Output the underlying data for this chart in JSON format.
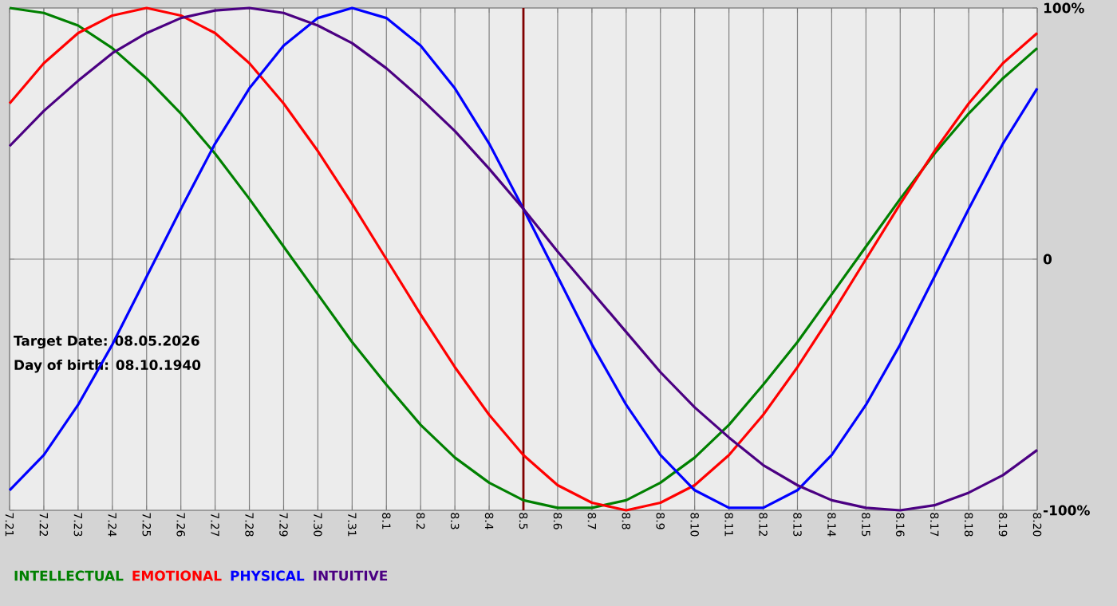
{
  "chart_data": {
    "type": "line",
    "categories": [
      "7.21",
      "7.22",
      "7.23",
      "7.24",
      "7.25",
      "7.26",
      "7.27",
      "7.28",
      "7.29",
      "7.30",
      "7.31",
      "8.1",
      "8.2",
      "8.3",
      "8.4",
      "8.5",
      "8.6",
      "8.7",
      "8.8",
      "8.9",
      "8.10",
      "8.11",
      "8.12",
      "8.13",
      "8.14",
      "8.15",
      "8.16",
      "8.17",
      "8.18",
      "8.19",
      "8.20"
    ],
    "series": [
      {
        "name": "INTELLECTUAL",
        "color": "#008000",
        "values": [
          100,
          98,
          93,
          84,
          72,
          58,
          42,
          24,
          5,
          -14,
          -33,
          -50,
          -66,
          -79,
          -89,
          -96,
          -99,
          -99,
          -96,
          -89,
          -79,
          -66,
          -50,
          -33,
          -14,
          5,
          24,
          42,
          58,
          72,
          84
        ]
      },
      {
        "name": "EMOTIONAL",
        "color": "#ff0000",
        "values": [
          62,
          78,
          90,
          97,
          100,
          97,
          90,
          78,
          62,
          43,
          22,
          0,
          -22,
          -43,
          -62,
          -78,
          -90,
          -97,
          -100,
          -97,
          -90,
          -78,
          -62,
          -43,
          -22,
          0,
          22,
          43,
          62,
          78,
          90
        ]
      },
      {
        "name": "PHYSICAL",
        "color": "#0000ff",
        "values": [
          -92,
          -78,
          -58,
          -34,
          -7,
          20,
          46,
          68,
          85,
          96,
          100,
          96,
          85,
          68,
          46,
          20,
          -7,
          -34,
          -58,
          -78,
          -92,
          -99,
          -99,
          -92,
          -78,
          -58,
          -34,
          -7,
          20,
          46,
          68
        ]
      },
      {
        "name": "INTUITIVE",
        "color": "#4b0082",
        "values": [
          45,
          59,
          71,
          82,
          90,
          96,
          99,
          100,
          98,
          93,
          86,
          76,
          64,
          51,
          36,
          20,
          3,
          -13,
          -29,
          -45,
          -59,
          -71,
          -82,
          -90,
          -96,
          -99,
          -100,
          -98,
          -93,
          -86,
          -76
        ]
      }
    ],
    "ylim": [
      -100,
      100
    ],
    "yticks": [
      {
        "value": 100,
        "label": "100%"
      },
      0,
      {
        "value": -100,
        "label": "-100%"
      }
    ],
    "grid": true,
    "legend": "bottom",
    "ref_lines": [
      {
        "axis": "x",
        "value": "8.5",
        "color": "#800000"
      }
    ],
    "annotations": [
      "Target Date: 08.05.2026",
      "Day of birth: 08.10.1940"
    ]
  }
}
